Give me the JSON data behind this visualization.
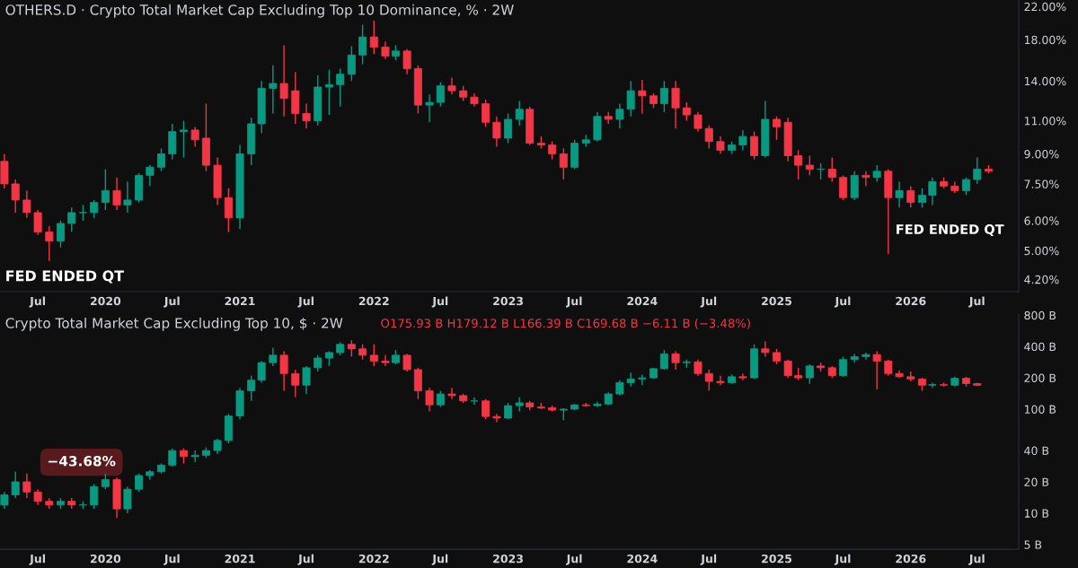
{
  "chart_data": [
    {
      "type": "candlestick",
      "title": "OTHERS.D · Crypto Total Market Cap Excluding Top 10 Dominance, % · 2W",
      "log": true,
      "annotations": [
        "FED ENDED QT",
        "FED ENDED QT"
      ],
      "xlim": [
        "2019-03-20",
        "2026-10-22"
      ],
      "xticks": [
        {
          "value": "2019-07-01",
          "label": "Jul"
        },
        {
          "value": "2020-01-01",
          "label": "2020"
        },
        {
          "value": "2020-07-01",
          "label": "Jul"
        },
        {
          "value": "2021-01-01",
          "label": "2021"
        },
        {
          "value": "2021-07-01",
          "label": "Jul"
        },
        {
          "value": "2022-01-01",
          "label": "2022"
        },
        {
          "value": "2022-07-01",
          "label": "Jul"
        },
        {
          "value": "2023-01-01",
          "label": "2023"
        },
        {
          "value": "2023-07-01",
          "label": "Jul"
        },
        {
          "value": "2024-01-01",
          "label": "2024"
        },
        {
          "value": "2024-07-01",
          "label": "Jul"
        },
        {
          "value": "2025-01-01",
          "label": "2025"
        },
        {
          "value": "2025-07-01",
          "label": "Jul"
        },
        {
          "value": "2026-01-01",
          "label": "2026"
        },
        {
          "value": "2026-07-01",
          "label": "Jul"
        }
      ],
      "ylim": [
        3.9,
        22.9
      ],
      "yticks": [
        {
          "value": 4.2,
          "label": "4.20%"
        },
        {
          "value": 5,
          "label": "5.00%"
        },
        {
          "value": 6,
          "label": "6.00%"
        },
        {
          "value": 7.5,
          "label": "7.50%"
        },
        {
          "value": 9,
          "label": "9.00%"
        },
        {
          "value": 11,
          "label": "11.00%"
        },
        {
          "value": 14,
          "label": "14.00%"
        },
        {
          "value": 18,
          "label": "18.00%"
        },
        {
          "value": 22,
          "label": "22.00%"
        }
      ],
      "x": [
        "2019-04",
        "2019-05",
        "2019-06",
        "2019-07",
        "2019-08",
        "2019-09",
        "2019-10",
        "2019-11",
        "2019-12",
        "2020-01",
        "2020-02",
        "2020-03",
        "2020-04",
        "2020-05",
        "2020-06",
        "2020-07",
        "2020-08",
        "2020-09",
        "2020-10",
        "2020-11",
        "2020-12",
        "2021-01",
        "2021-02",
        "2021-03",
        "2021-04",
        "2021-05",
        "2021-06",
        "2021-07",
        "2021-08",
        "2021-09",
        "2021-10",
        "2021-11",
        "2021-12",
        "2022-01",
        "2022-02",
        "2022-03",
        "2022-04",
        "2022-05",
        "2022-06",
        "2022-07",
        "2022-08",
        "2022-09",
        "2022-10",
        "2022-11",
        "2022-12",
        "2023-01",
        "2023-02",
        "2023-03",
        "2023-04",
        "2023-05",
        "2023-06",
        "2023-07",
        "2023-08",
        "2023-09",
        "2023-10",
        "2023-11",
        "2023-12",
        "2024-01",
        "2024-02",
        "2024-03",
        "2024-04",
        "2024-05",
        "2024-06",
        "2024-07",
        "2024-08",
        "2024-09",
        "2024-10",
        "2024-11",
        "2024-12",
        "2025-01",
        "2025-02",
        "2025-03",
        "2025-04",
        "2025-05",
        "2025-06",
        "2025-07",
        "2025-08",
        "2025-09",
        "2025-10",
        "2025-11",
        "2025-12",
        "2026-01",
        "2026-02",
        "2026-03",
        "2026-04",
        "2026-05",
        "2026-06",
        "2026-07",
        "2026-08"
      ],
      "ohlc": [
        [
          8.6,
          9.0,
          7.3,
          7.5
        ],
        [
          7.5,
          7.7,
          6.3,
          6.8
        ],
        [
          6.8,
          7.2,
          6.1,
          6.3
        ],
        [
          6.3,
          6.4,
          5.5,
          5.6
        ],
        [
          5.6,
          5.8,
          4.7,
          5.3
        ],
        [
          5.3,
          6.0,
          5.1,
          5.9
        ],
        [
          5.9,
          6.5,
          5.6,
          6.3
        ],
        [
          6.3,
          6.6,
          6.0,
          6.3
        ],
        [
          6.3,
          6.8,
          6.1,
          6.7
        ],
        [
          6.7,
          8.2,
          6.4,
          7.2
        ],
        [
          7.2,
          7.8,
          6.4,
          6.6
        ],
        [
          6.6,
          7.6,
          6.3,
          6.8
        ],
        [
          6.8,
          8.0,
          6.7,
          7.9
        ],
        [
          7.9,
          8.4,
          7.4,
          8.3
        ],
        [
          8.3,
          9.3,
          8.1,
          9.0
        ],
        [
          9.0,
          10.8,
          8.7,
          10.3
        ],
        [
          10.3,
          11.0,
          8.8,
          10.4
        ],
        [
          10.4,
          10.6,
          9.4,
          9.8
        ],
        [
          9.9,
          12.2,
          8.1,
          8.4
        ],
        [
          8.4,
          8.8,
          6.6,
          6.9
        ],
        [
          6.9,
          7.3,
          5.6,
          6.1
        ],
        [
          6.1,
          9.5,
          5.7,
          9.0
        ],
        [
          9.0,
          11.2,
          8.4,
          10.8
        ],
        [
          10.8,
          14.0,
          10.2,
          13.4
        ],
        [
          13.4,
          15.4,
          11.5,
          13.8
        ],
        [
          13.8,
          17.4,
          11.3,
          12.6
        ],
        [
          13.2,
          14.8,
          10.8,
          11.5
        ],
        [
          11.5,
          12.2,
          10.5,
          11.0
        ],
        [
          11.0,
          14.5,
          10.7,
          13.5
        ],
        [
          13.5,
          15.0,
          11.4,
          13.7
        ],
        [
          13.7,
          15.1,
          12.0,
          14.6
        ],
        [
          14.6,
          17.3,
          14.0,
          16.4
        ],
        [
          16.4,
          19.7,
          15.5,
          18.3
        ],
        [
          18.3,
          20.2,
          16.5,
          17.2
        ],
        [
          17.2,
          17.8,
          16.0,
          16.3
        ],
        [
          16.3,
          17.4,
          15.9,
          16.8
        ],
        [
          16.8,
          17.0,
          14.6,
          15.1
        ],
        [
          15.1,
          15.4,
          11.5,
          12.1
        ],
        [
          12.1,
          12.9,
          10.9,
          12.3
        ],
        [
          12.3,
          13.9,
          12.0,
          13.6
        ],
        [
          13.6,
          14.3,
          12.9,
          13.2
        ],
        [
          13.2,
          13.6,
          12.4,
          12.7
        ],
        [
          12.7,
          13.0,
          12.0,
          12.2
        ],
        [
          12.2,
          12.5,
          10.6,
          10.9
        ],
        [
          10.9,
          11.3,
          9.4,
          9.9
        ],
        [
          9.9,
          11.5,
          9.6,
          11.1
        ],
        [
          11.1,
          12.4,
          10.7,
          11.8
        ],
        [
          11.8,
          12.0,
          9.5,
          9.6
        ],
        [
          9.6,
          10.0,
          9.3,
          9.5
        ],
        [
          9.5,
          9.7,
          8.7,
          9.0
        ],
        [
          9.0,
          9.3,
          7.7,
          8.3
        ],
        [
          8.3,
          9.8,
          8.2,
          9.6
        ],
        [
          9.6,
          10.1,
          9.4,
          9.8
        ],
        [
          9.8,
          11.6,
          9.7,
          11.3
        ],
        [
          11.3,
          11.6,
          10.8,
          11.1
        ],
        [
          11.1,
          12.2,
          10.5,
          11.8
        ],
        [
          11.8,
          14.0,
          11.3,
          13.2
        ],
        [
          13.2,
          14.1,
          11.5,
          12.8
        ],
        [
          12.8,
          13.0,
          11.9,
          12.2
        ],
        [
          12.2,
          14.0,
          11.6,
          13.4
        ],
        [
          13.4,
          14.0,
          10.5,
          11.9
        ],
        [
          11.9,
          12.3,
          11.0,
          11.4
        ],
        [
          11.4,
          11.6,
          10.3,
          10.5
        ],
        [
          10.5,
          10.7,
          9.3,
          9.7
        ],
        [
          9.7,
          10.0,
          9.0,
          9.2
        ],
        [
          9.2,
          9.7,
          9.0,
          9.5
        ],
        [
          9.5,
          10.4,
          9.2,
          10.0
        ],
        [
          10.0,
          10.3,
          8.7,
          8.9
        ],
        [
          8.9,
          12.4,
          8.8,
          11.1
        ],
        [
          11.1,
          11.3,
          9.8,
          10.6
        ],
        [
          10.9,
          11.2,
          8.6,
          8.9
        ],
        [
          8.9,
          9.2,
          7.7,
          8.4
        ],
        [
          8.4,
          8.9,
          7.9,
          8.2
        ],
        [
          8.2,
          8.5,
          7.7,
          8.2
        ],
        [
          8.2,
          8.8,
          7.6,
          7.8
        ],
        [
          7.8,
          7.9,
          6.8,
          6.9
        ],
        [
          6.9,
          8.1,
          6.8,
          7.9
        ],
        [
          7.9,
          8.1,
          7.4,
          7.8
        ],
        [
          7.8,
          8.4,
          7.6,
          8.1
        ],
        [
          8.1,
          8.2,
          4.9,
          6.9
        ],
        [
          6.9,
          7.6,
          6.5,
          7.2
        ],
        [
          7.2,
          7.4,
          6.5,
          6.7
        ],
        [
          6.7,
          7.3,
          6.5,
          7.0
        ],
        [
          7.0,
          7.8,
          6.6,
          7.6
        ],
        [
          7.6,
          7.8,
          7.3,
          7.4
        ],
        [
          7.4,
          7.6,
          7.1,
          7.2
        ],
        [
          7.2,
          7.8,
          7.0,
          7.7
        ],
        [
          7.7,
          8.8,
          7.5,
          8.2
        ],
        [
          8.2,
          8.4,
          8.0,
          8.1
        ]
      ]
    },
    {
      "type": "candlestick",
      "title": "Crypto Total Market Cap Excluding Top 10, $ · 2W",
      "log": true,
      "annotations": [
        "O175.93 B H179.12 B L166.39 B C169.68 B −6.11 B (−3.48%)",
        "−43.68%"
      ],
      "xlim": [
        "2019-03-20",
        "2026-10-22"
      ],
      "xticks": [
        {
          "value": "2019-07-01",
          "label": "Jul"
        },
        {
          "value": "2020-01-01",
          "label": "2020"
        },
        {
          "value": "2020-07-01",
          "label": "Jul"
        },
        {
          "value": "2021-01-01",
          "label": "2021"
        },
        {
          "value": "2021-07-01",
          "label": "Jul"
        },
        {
          "value": "2022-01-01",
          "label": "2022"
        },
        {
          "value": "2022-07-01",
          "label": "Jul"
        },
        {
          "value": "2023-01-01",
          "label": "2023"
        },
        {
          "value": "2023-07-01",
          "label": "Jul"
        },
        {
          "value": "2024-01-01",
          "label": "2024"
        },
        {
          "value": "2024-07-01",
          "label": "Jul"
        },
        {
          "value": "2025-01-01",
          "label": "2025"
        },
        {
          "value": "2025-07-01",
          "label": "Jul"
        },
        {
          "value": "2026-01-01",
          "label": "2026"
        },
        {
          "value": "2026-07-01",
          "label": "Jul"
        }
      ],
      "ylim": [
        4.5,
        820
      ],
      "yticks": [
        {
          "value": 5,
          "label": "5 B"
        },
        {
          "value": 10,
          "label": "10 B"
        },
        {
          "value": 20,
          "label": "20 B"
        },
        {
          "value": 40,
          "label": "40 B"
        },
        {
          "value": 100,
          "label": "100 B"
        },
        {
          "value": 200,
          "label": "200 B"
        },
        {
          "value": 400,
          "label": "400 B"
        },
        {
          "value": 800,
          "label": "800 B"
        }
      ],
      "x": [
        "2019-04",
        "2019-05",
        "2019-06",
        "2019-07",
        "2019-08",
        "2019-09",
        "2019-10",
        "2019-11",
        "2019-12",
        "2020-01",
        "2020-02",
        "2020-03",
        "2020-04",
        "2020-05",
        "2020-06",
        "2020-07",
        "2020-08",
        "2020-09",
        "2020-10",
        "2020-11",
        "2020-12",
        "2021-01",
        "2021-02",
        "2021-03",
        "2021-04",
        "2021-05",
        "2021-06",
        "2021-07",
        "2021-08",
        "2021-09",
        "2021-10",
        "2021-11",
        "2021-12",
        "2022-01",
        "2022-02",
        "2022-03",
        "2022-04",
        "2022-05",
        "2022-06",
        "2022-07",
        "2022-08",
        "2022-09",
        "2022-10",
        "2022-11",
        "2022-12",
        "2023-01",
        "2023-02",
        "2023-03",
        "2023-04",
        "2023-05",
        "2023-06",
        "2023-07",
        "2023-08",
        "2023-09",
        "2023-10",
        "2023-11",
        "2023-12",
        "2024-01",
        "2024-02",
        "2024-03",
        "2024-04",
        "2024-05",
        "2024-06",
        "2024-07",
        "2024-08",
        "2024-09",
        "2024-10",
        "2024-11",
        "2024-12",
        "2025-01",
        "2025-02",
        "2025-03",
        "2025-04",
        "2025-05",
        "2025-06",
        "2025-07",
        "2025-08",
        "2025-09",
        "2025-10",
        "2025-11",
        "2025-12",
        "2026-01",
        "2026-02",
        "2026-03",
        "2026-04",
        "2026-05",
        "2026-06",
        "2026-07"
      ],
      "ohlc": [
        [
          12,
          16,
          11,
          15
        ],
        [
          15,
          25,
          14,
          20
        ],
        [
          20,
          24,
          14,
          16
        ],
        [
          16,
          17,
          12,
          13
        ],
        [
          13,
          14,
          11,
          12
        ],
        [
          12,
          14,
          11,
          13
        ],
        [
          13,
          14,
          11,
          12
        ],
        [
          12,
          13,
          11,
          12
        ],
        [
          12,
          19,
          11,
          18
        ],
        [
          18,
          24,
          17,
          21
        ],
        [
          21,
          22,
          9,
          11
        ],
        [
          11,
          18,
          10,
          17
        ],
        [
          17,
          24,
          16,
          23
        ],
        [
          23,
          26,
          21,
          25
        ],
        [
          25,
          30,
          24,
          29
        ],
        [
          29,
          42,
          28,
          40
        ],
        [
          40,
          42,
          30,
          35
        ],
        [
          35,
          40,
          31,
          36
        ],
        [
          36,
          43,
          34,
          40
        ],
        [
          40,
          52,
          37,
          50
        ],
        [
          50,
          90,
          47,
          86
        ],
        [
          86,
          160,
          80,
          150
        ],
        [
          150,
          210,
          120,
          190
        ],
        [
          190,
          290,
          180,
          280
        ],
        [
          280,
          390,
          260,
          330
        ],
        [
          330,
          360,
          150,
          220
        ],
        [
          220,
          240,
          130,
          170
        ],
        [
          170,
          260,
          140,
          250
        ],
        [
          250,
          330,
          230,
          310
        ],
        [
          310,
          360,
          260,
          350
        ],
        [
          350,
          440,
          330,
          420
        ],
        [
          420,
          460,
          320,
          380
        ],
        [
          380,
          420,
          300,
          330
        ],
        [
          330,
          420,
          260,
          290
        ],
        [
          290,
          330,
          260,
          280
        ],
        [
          280,
          370,
          270,
          330
        ],
        [
          330,
          340,
          230,
          240
        ],
        [
          240,
          250,
          125,
          150
        ],
        [
          150,
          160,
          95,
          110
        ],
        [
          110,
          150,
          105,
          140
        ],
        [
          140,
          160,
          125,
          135
        ],
        [
          135,
          140,
          115,
          120
        ],
        [
          120,
          130,
          110,
          120
        ],
        [
          120,
          125,
          80,
          85
        ],
        [
          85,
          90,
          75,
          82
        ],
        [
          82,
          115,
          80,
          108
        ],
        [
          108,
          130,
          95,
          115
        ],
        [
          115,
          120,
          98,
          105
        ],
        [
          105,
          115,
          100,
          103
        ],
        [
          103,
          108,
          95,
          98
        ],
        [
          98,
          102,
          78,
          100
        ],
        [
          100,
          112,
          98,
          110
        ],
        [
          110,
          115,
          105,
          108
        ],
        [
          108,
          118,
          105,
          112
        ],
        [
          112,
          145,
          110,
          140
        ],
        [
          140,
          190,
          135,
          180
        ],
        [
          180,
          225,
          165,
          195
        ],
        [
          195,
          215,
          170,
          200
        ],
        [
          200,
          250,
          195,
          245
        ],
        [
          245,
          370,
          240,
          340
        ],
        [
          340,
          360,
          240,
          280
        ],
        [
          280,
          300,
          250,
          285
        ],
        [
          285,
          300,
          210,
          220
        ],
        [
          220,
          240,
          150,
          185
        ],
        [
          185,
          210,
          170,
          180
        ],
        [
          180,
          215,
          175,
          205
        ],
        [
          205,
          220,
          190,
          200
        ],
        [
          200,
          420,
          195,
          380
        ],
        [
          380,
          450,
          320,
          350
        ],
        [
          350,
          380,
          270,
          290
        ],
        [
          290,
          300,
          200,
          210
        ],
        [
          210,
          250,
          190,
          200
        ],
        [
          200,
          270,
          175,
          260
        ],
        [
          260,
          280,
          230,
          250
        ],
        [
          250,
          260,
          200,
          210
        ],
        [
          210,
          320,
          205,
          300
        ],
        [
          300,
          340,
          280,
          320
        ],
        [
          320,
          350,
          300,
          335
        ],
        [
          335,
          360,
          155,
          290
        ],
        [
          290,
          300,
          210,
          220
        ],
        [
          220,
          235,
          200,
          205
        ],
        [
          205,
          230,
          185,
          195
        ],
        [
          195,
          200,
          150,
          170
        ],
        [
          170,
          180,
          160,
          172
        ],
        [
          172,
          180,
          165,
          170
        ],
        [
          170,
          205,
          165,
          198
        ],
        [
          198,
          205,
          165,
          176
        ],
        [
          175.93,
          179.12,
          166.39,
          169.68
        ]
      ]
    }
  ]
}
